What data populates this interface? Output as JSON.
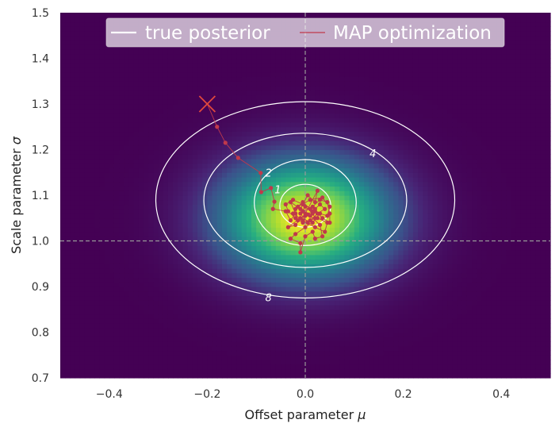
{
  "chart_data": {
    "type": "heatmap",
    "title": "",
    "xlabel": "Offset parameter",
    "xlabel_symbol": "μ",
    "ylabel": "Scale parameter",
    "ylabel_symbol": "σ",
    "xlim": [
      -0.5,
      0.5
    ],
    "ylim": [
      0.7,
      1.5
    ],
    "xticks": [
      -0.4,
      -0.2,
      0.0,
      0.2,
      0.4
    ],
    "xtick_labels": [
      "−0.4",
      "−0.2",
      "0.0",
      "0.2",
      "0.4"
    ],
    "yticks": [
      0.7,
      0.8,
      0.9,
      1.0,
      1.1,
      1.2,
      1.3,
      1.4,
      1.5
    ],
    "ytick_labels": [
      "0.7",
      "0.8",
      "0.9",
      "1.0",
      "1.1",
      "1.2",
      "1.3",
      "1.4",
      "1.5"
    ],
    "colormap": "viridis",
    "posterior": {
      "mean_mu": 0.0,
      "mean_sigma": 1.05,
      "std_mu": 0.12,
      "std_sigma": 0.09
    },
    "reference_lines": {
      "x": 0.0,
      "y": 1.0,
      "style": "dashed",
      "color": "#999999"
    },
    "contours": [
      {
        "level": "1",
        "half_width_mu": 0.052,
        "half_height_sigma": 0.047,
        "center": [
          0.0,
          1.077
        ],
        "label_at": [
          -0.056,
          1.112
        ]
      },
      {
        "level": "2",
        "half_width_mu": 0.104,
        "half_height_sigma": 0.094,
        "center": [
          0.0,
          1.084
        ],
        "label_at": [
          -0.075,
          1.149
        ]
      },
      {
        "level": "4",
        "half_width_mu": 0.207,
        "half_height_sigma": 0.147,
        "center": [
          0.0,
          1.089
        ],
        "label_at": [
          0.138,
          1.191
        ]
      },
      {
        "level": "8",
        "half_width_mu": 0.305,
        "half_height_sigma": 0.215,
        "center": [
          0.0,
          1.09
        ],
        "label_at": [
          -0.075,
          0.876
        ]
      }
    ],
    "series": [
      {
        "name": "true posterior",
        "kind": "contour",
        "color": "#ffffff"
      },
      {
        "name": "MAP optimization",
        "kind": "trajectory",
        "color": "#c0394b",
        "start": [
          -0.2,
          1.3
        ],
        "points": [
          [
            -0.2,
            1.3
          ],
          [
            -0.18,
            1.25
          ],
          [
            -0.163,
            1.215
          ],
          [
            -0.137,
            1.182
          ],
          [
            -0.091,
            1.149
          ],
          [
            -0.09,
            1.107
          ],
          [
            -0.07,
            1.116
          ],
          [
            -0.063,
            1.086
          ],
          [
            -0.066,
            1.07
          ],
          [
            -0.04,
            1.065
          ],
          [
            -0.03,
            1.045
          ],
          [
            -0.02,
            1.06
          ],
          [
            -0.03,
            1.085
          ],
          [
            -0.01,
            1.07
          ],
          [
            0.005,
            1.1
          ],
          [
            0.02,
            1.085
          ],
          [
            0.025,
            1.11
          ],
          [
            0.0,
            1.06
          ],
          [
            -0.02,
            1.035
          ],
          [
            -0.035,
            1.03
          ],
          [
            -0.01,
            1.05
          ],
          [
            0.015,
            1.04
          ],
          [
            0.03,
            1.06
          ],
          [
            0.045,
            1.055
          ],
          [
            0.05,
            1.075
          ],
          [
            0.035,
            1.095
          ],
          [
            0.01,
            1.09
          ],
          [
            -0.015,
            1.075
          ],
          [
            -0.025,
            1.06
          ],
          [
            -0.005,
            1.045
          ],
          [
            0.02,
            1.03
          ],
          [
            0.04,
            1.02
          ],
          [
            0.045,
            1.04
          ],
          [
            0.025,
            1.05
          ],
          [
            0.0,
            1.03
          ],
          [
            -0.02,
            1.015
          ],
          [
            -0.03,
            1.005
          ],
          [
            -0.01,
            0.995
          ],
          [
            -0.01,
            0.975
          ],
          [
            0.0,
            1.01
          ],
          [
            0.015,
            1.02
          ],
          [
            0.02,
            1.005
          ],
          [
            0.035,
            1.01
          ],
          [
            0.03,
            1.035
          ],
          [
            0.01,
            1.055
          ],
          [
            -0.005,
            1.065
          ],
          [
            0.015,
            1.075
          ],
          [
            0.03,
            1.09
          ],
          [
            0.045,
            1.085
          ],
          [
            0.05,
            1.06
          ],
          [
            0.05,
            1.04
          ],
          [
            0.035,
            1.05
          ],
          [
            0.02,
            1.065
          ],
          [
            -0.005,
            1.08
          ],
          [
            -0.025,
            1.09
          ],
          [
            -0.04,
            1.08
          ],
          [
            -0.035,
            1.065
          ],
          [
            -0.02,
            1.05
          ],
          [
            -0.005,
            1.04
          ],
          [
            0.01,
            1.045
          ],
          [
            0.025,
            1.06
          ],
          [
            0.04,
            1.07
          ],
          [
            0.03,
            1.08
          ],
          [
            0.015,
            1.065
          ],
          [
            0.0,
            1.055
          ],
          [
            -0.015,
            1.045
          ],
          [
            -0.02,
            1.07
          ],
          [
            -0.005,
            1.085
          ],
          [
            0.01,
            1.07
          ],
          [
            0.02,
            1.05
          ],
          [
            0.005,
            1.04
          ],
          [
            -0.01,
            1.06
          ],
          [
            0.0,
            1.075
          ],
          [
            0.015,
            1.06
          ],
          [
            0.02,
            1.07
          ],
          [
            0.005,
            1.058
          ]
        ]
      }
    ],
    "legend": {
      "placement": "top-center",
      "columns": 2,
      "background": "#ffffff"
    },
    "grid": false
  }
}
